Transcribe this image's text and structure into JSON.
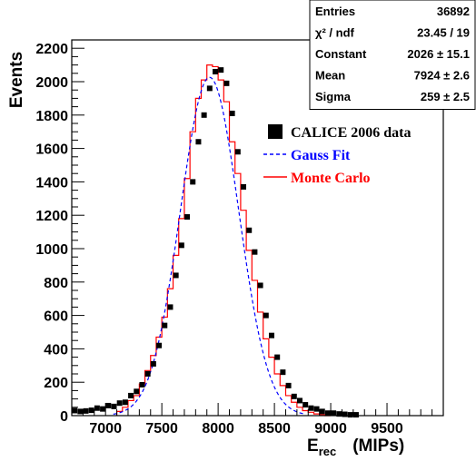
{
  "chart_data": {
    "type": "histogram",
    "ylabel": "Events",
    "xlabel_main": "E",
    "xlabel_sub": "rec",
    "xlabel_unit": "(MIPs)",
    "xlim": [
      6700,
      10000
    ],
    "ylim": [
      0,
      2250
    ],
    "x_ticks": [
      7000,
      7500,
      8000,
      8500,
      9000,
      9500
    ],
    "y_ticks": [
      0,
      200,
      400,
      600,
      800,
      1000,
      1200,
      1400,
      1600,
      1800,
      2000,
      2200
    ],
    "stats": [
      {
        "label": "Entries",
        "value": "36892"
      },
      {
        "label": "χ² / ndf",
        "value": "23.45 / 19"
      },
      {
        "label": "Constant",
        "value": "2026 ± 15.1"
      },
      {
        "label": "Mean",
        "value": "7924 ± 2.6"
      },
      {
        "label": "Sigma",
        "value": "259 ± 2.5"
      }
    ],
    "legend": [
      {
        "label": "CALICE 2006 data",
        "color": "#000000",
        "style": "marker"
      },
      {
        "label": "Gauss Fit",
        "color": "#0000ff",
        "style": "dashed"
      },
      {
        "label": "Monte Carlo",
        "color": "#ff0000",
        "style": "solid"
      }
    ],
    "series": [
      {
        "name": "CALICE 2006 data",
        "x": [
          6725,
          6775,
          6825,
          6875,
          6925,
          6975,
          7025,
          7075,
          7125,
          7175,
          7225,
          7275,
          7325,
          7375,
          7425,
          7475,
          7525,
          7575,
          7625,
          7675,
          7725,
          7775,
          7825,
          7875,
          7925,
          7975,
          8025,
          8075,
          8125,
          8175,
          8225,
          8275,
          8325,
          8375,
          8425,
          8475,
          8525,
          8575,
          8625,
          8675,
          8725,
          8775,
          8825,
          8875,
          8925,
          8975,
          9025,
          9075,
          9125,
          9175,
          9225
        ],
        "y": [
          30,
          25,
          28,
          32,
          45,
          40,
          60,
          55,
          75,
          80,
          120,
          145,
          185,
          250,
          310,
          420,
          540,
          650,
          840,
          1020,
          1190,
          1400,
          1640,
          1800,
          1960,
          2060,
          2070,
          1990,
          1810,
          1580,
          1370,
          1110,
          980,
          780,
          600,
          480,
          350,
          260,
          180,
          115,
          90,
          65,
          45,
          40,
          25,
          15,
          15,
          10,
          8,
          5,
          5
        ]
      },
      {
        "name": "Gauss Fit",
        "constant": 2026,
        "mean": 7924,
        "sigma": 259
      },
      {
        "name": "Monte Carlo",
        "bin_edges": [
          7100,
          7150,
          7200,
          7250,
          7300,
          7350,
          7400,
          7450,
          7500,
          7550,
          7600,
          7650,
          7700,
          7750,
          7800,
          7850,
          7900,
          7950,
          8000,
          8050,
          8100,
          8150,
          8200,
          8250,
          8300,
          8350,
          8400,
          8450,
          8500,
          8550,
          8600,
          8650,
          8700,
          8750,
          8800,
          8850,
          8900,
          8950,
          9000
        ],
        "values": [
          25,
          50,
          90,
          120,
          190,
          270,
          360,
          470,
          590,
          760,
          960,
          1180,
          1420,
          1700,
          1900,
          2010,
          2100,
          2090,
          2010,
          1880,
          1640,
          1450,
          1230,
          990,
          810,
          620,
          460,
          350,
          250,
          180,
          120,
          80,
          50,
          30,
          20,
          10,
          5,
          0
        ]
      }
    ]
  }
}
